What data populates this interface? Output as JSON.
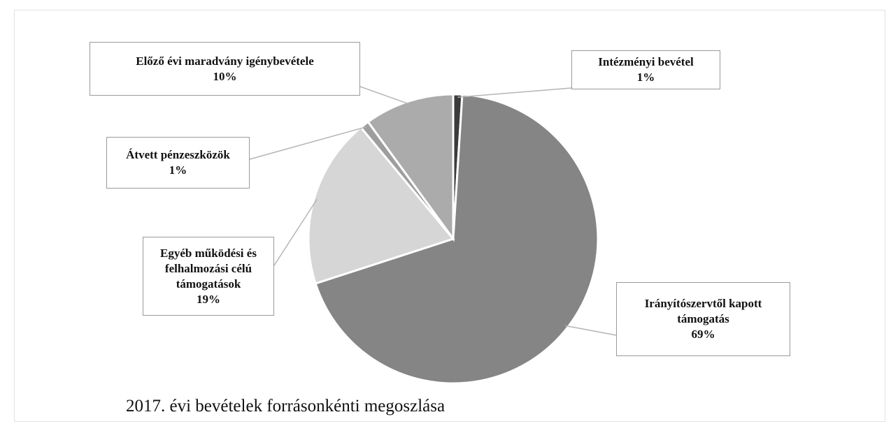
{
  "chart_data": {
    "type": "pie",
    "title": "2017. évi bevételek forrásonkénti megoszlása",
    "categories": [
      "Intézményi bevétel",
      "Irányítószervtől kapott támogatás",
      "Egyéb működési és felhalmozási célú támogatások",
      "Átvett pénzeszközök",
      "Előző évi maradvány igénybevétele"
    ],
    "values": [
      1,
      69,
      19,
      1,
      10
    ],
    "value_labels": [
      "1%",
      "69%",
      "19%",
      "1%",
      "10%"
    ],
    "colors": [
      "#3b3b3b",
      "#858585",
      "#d6d6d6",
      "#9e9e9e",
      "#ababab"
    ]
  }
}
